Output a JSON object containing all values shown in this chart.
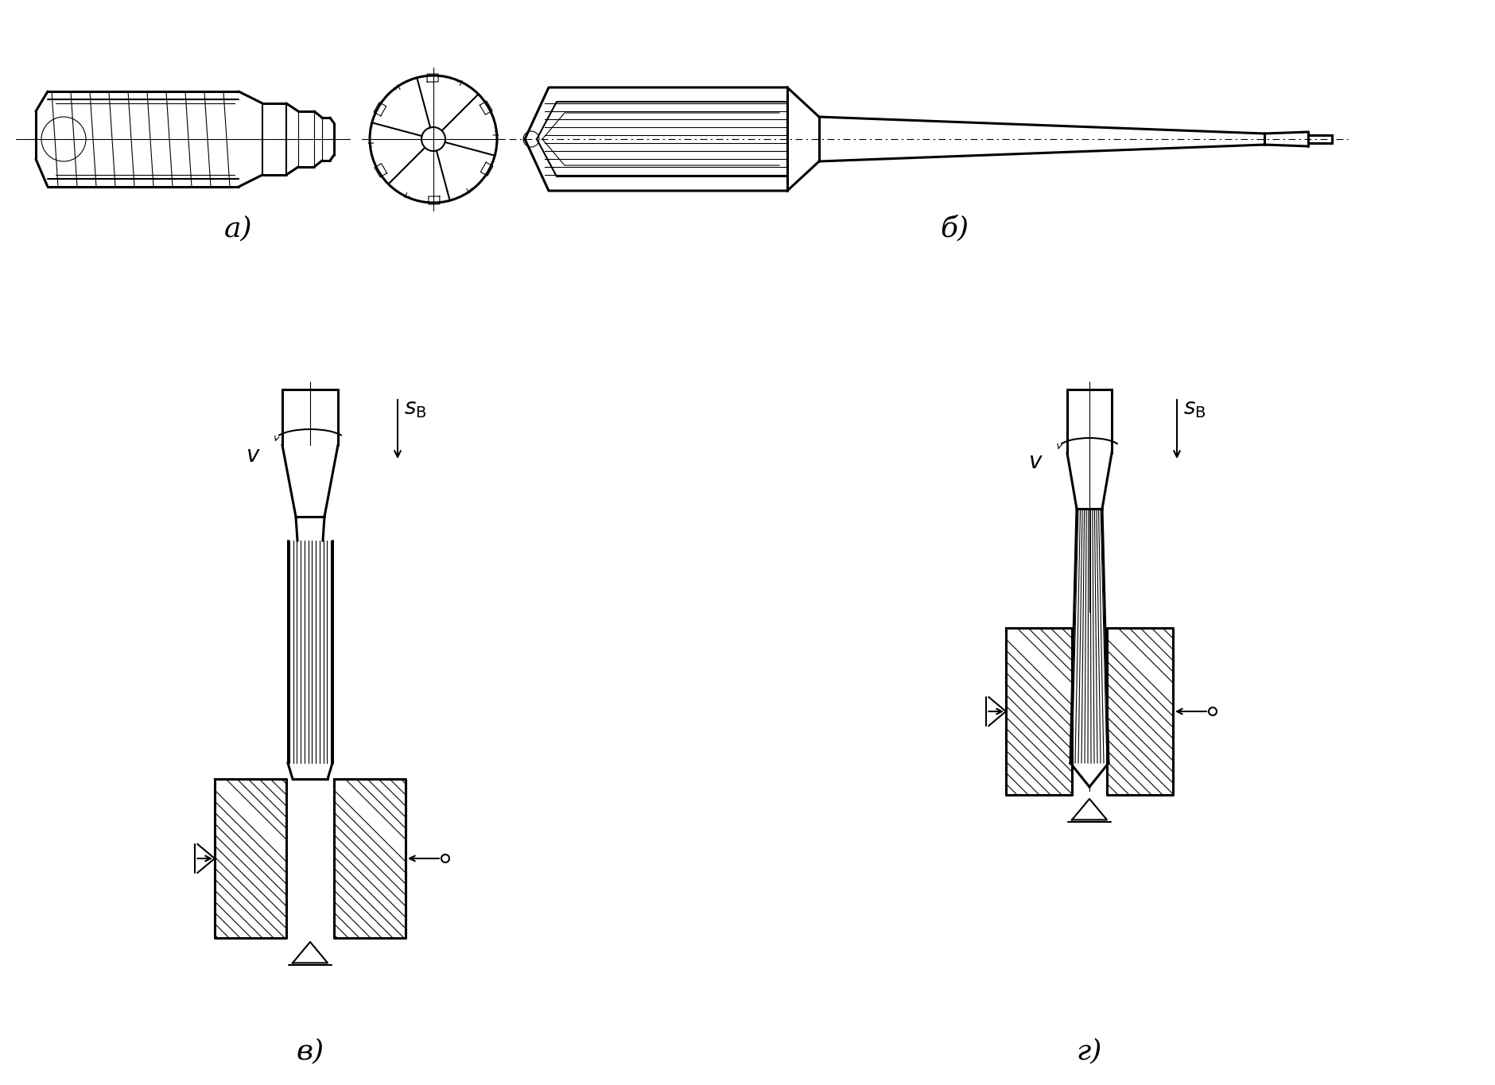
{
  "bg_color": "#ffffff",
  "line_color": "#000000",
  "label_a": "а)",
  "label_b": "б)",
  "label_v": "в)",
  "label_g": "г)",
  "fig_width": 18.8,
  "fig_height": 13.65,
  "dpi": 100
}
